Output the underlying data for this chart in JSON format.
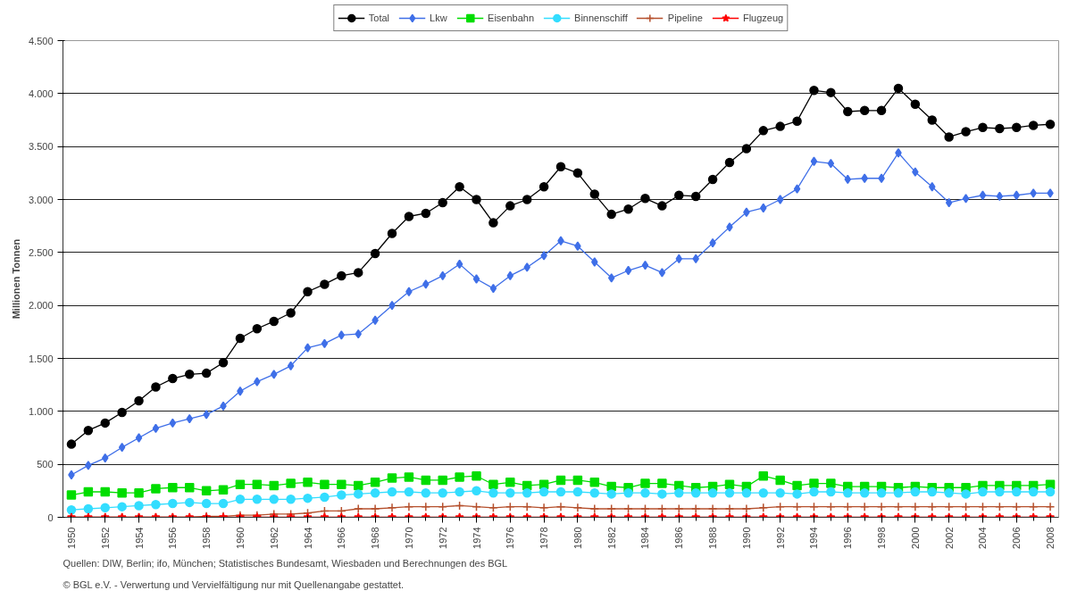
{
  "chart_data": {
    "type": "line",
    "ylabel": "Millionen Tonnen",
    "x": [
      1950,
      1951,
      1952,
      1953,
      1954,
      1955,
      1956,
      1957,
      1958,
      1959,
      1960,
      1961,
      1962,
      1963,
      1964,
      1965,
      1966,
      1967,
      1968,
      1969,
      1970,
      1971,
      1972,
      1973,
      1974,
      1975,
      1976,
      1977,
      1978,
      1979,
      1980,
      1981,
      1982,
      1983,
      1984,
      1985,
      1986,
      1987,
      1988,
      1989,
      1990,
      1991,
      1992,
      1993,
      1994,
      1995,
      1996,
      1997,
      1998,
      1999,
      2000,
      2001,
      2002,
      2003,
      2004,
      2005,
      2006,
      2007,
      2008
    ],
    "series": [
      {
        "name": "Total",
        "color": "#000000",
        "marker": "circle",
        "values": [
          690,
          820,
          890,
          990,
          1100,
          1230,
          1310,
          1350,
          1360,
          1460,
          1690,
          1780,
          1850,
          1930,
          2130,
          2200,
          2280,
          2310,
          2490,
          2680,
          2840,
          2870,
          2970,
          3120,
          3000,
          2780,
          2940,
          3000,
          3120,
          3310,
          3250,
          3050,
          2860,
          2910,
          3010,
          2940,
          3040,
          3030,
          3190,
          3350,
          3480,
          3650,
          3690,
          3740,
          4030,
          4010,
          3830,
          3840,
          3840,
          4050,
          3900,
          3750,
          3590,
          3640,
          3680,
          3670,
          3680,
          3700,
          3710
        ]
      },
      {
        "name": "Lkw",
        "color": "#3f6fe8",
        "marker": "diamond",
        "values": [
          400,
          490,
          560,
          660,
          750,
          840,
          890,
          930,
          970,
          1050,
          1190,
          1280,
          1350,
          1430,
          1600,
          1640,
          1720,
          1730,
          1860,
          2000,
          2130,
          2200,
          2280,
          2390,
          2250,
          2160,
          2280,
          2360,
          2470,
          2610,
          2560,
          2410,
          2260,
          2330,
          2380,
          2310,
          2440,
          2440,
          2590,
          2740,
          2880,
          2920,
          3000,
          3100,
          3360,
          3340,
          3190,
          3200,
          3200,
          3440,
          3260,
          3120,
          2970,
          3010,
          3040,
          3030,
          3040,
          3060,
          3060
        ]
      },
      {
        "name": "Eisenbahn",
        "color": "#00dd00",
        "marker": "square",
        "values": [
          210,
          240,
          240,
          230,
          230,
          270,
          280,
          280,
          250,
          260,
          310,
          310,
          300,
          320,
          330,
          310,
          310,
          300,
          330,
          370,
          380,
          350,
          350,
          380,
          390,
          310,
          330,
          300,
          310,
          350,
          350,
          330,
          290,
          280,
          320,
          320,
          300,
          280,
          290,
          310,
          290,
          390,
          350,
          300,
          320,
          320,
          290,
          290,
          290,
          280,
          290,
          280,
          280,
          280,
          300,
          300,
          300,
          300,
          310
        ]
      },
      {
        "name": "Binnenschiff",
        "color": "#33ddff",
        "marker": "circle",
        "values": [
          70,
          80,
          90,
          100,
          110,
          120,
          130,
          140,
          130,
          130,
          170,
          170,
          170,
          170,
          180,
          190,
          210,
          220,
          230,
          240,
          240,
          230,
          230,
          240,
          250,
          230,
          230,
          230,
          240,
          240,
          240,
          230,
          220,
          230,
          230,
          220,
          230,
          230,
          230,
          230,
          230,
          230,
          230,
          220,
          240,
          240,
          230,
          230,
          230,
          230,
          240,
          240,
          230,
          220,
          240,
          240,
          240,
          240,
          240
        ]
      },
      {
        "name": "Pipeline",
        "color": "#b5502d",
        "marker": "cross",
        "values": [
          0,
          0,
          0,
          0,
          0,
          0,
          0,
          0,
          10,
          10,
          20,
          20,
          30,
          30,
          40,
          60,
          60,
          80,
          80,
          90,
          100,
          100,
          100,
          110,
          100,
          90,
          100,
          100,
          90,
          100,
          90,
          80,
          80,
          80,
          80,
          80,
          80,
          80,
          80,
          80,
          80,
          90,
          100,
          100,
          100,
          100,
          100,
          100,
          100,
          100,
          100,
          100,
          100,
          100,
          100,
          100,
          100,
          100,
          100
        ]
      },
      {
        "name": "Flugzeug",
        "color": "#ff0000",
        "marker": "star",
        "values": [
          0,
          0,
          0,
          0,
          0,
          0,
          0,
          0,
          0,
          0,
          0,
          0,
          0,
          0,
          0,
          0,
          0,
          0,
          0,
          0,
          0,
          0,
          0,
          0,
          0,
          0,
          0,
          0,
          0,
          0,
          0,
          0,
          0,
          0,
          0,
          0,
          0,
          0,
          0,
          0,
          0,
          0,
          0,
          0,
          0,
          0,
          0,
          0,
          0,
          0,
          0,
          0,
          0,
          0,
          0,
          0,
          0,
          0,
          0
        ]
      }
    ],
    "xlim": [
      1949.5,
      2008.5
    ],
    "xticks": [
      1950,
      1952,
      1954,
      1956,
      1958,
      1960,
      1962,
      1964,
      1966,
      1968,
      1970,
      1972,
      1974,
      1976,
      1978,
      1980,
      1982,
      1984,
      1986,
      1988,
      1990,
      1992,
      1994,
      1996,
      1998,
      2000,
      2002,
      2004,
      2006,
      2008
    ],
    "ylim": [
      0,
      4500
    ],
    "yticks": [
      0,
      500,
      {
        "value": 1000,
        "label": "1.000"
      },
      {
        "value": 1500,
        "label": "1.500"
      },
      {
        "value": 2000,
        "label": "2.000"
      },
      {
        "value": 2500,
        "label": "2.500"
      },
      {
        "value": 3000,
        "label": "3.000"
      },
      {
        "value": 3500,
        "label": "3.500"
      },
      {
        "value": 4000,
        "label": "4.000"
      },
      {
        "value": 4500,
        "label": "4.500"
      }
    ],
    "grid": "y",
    "legend": "top",
    "line_style": "solid",
    "annotations": [
      "Quellen: DIW, Berlin; ifo, München; Statistisches Bundesamt, Wiesbaden und Berechnungen des BGL",
      "© BGL e.V. - Verwertung und Vervielfältigung nur mit Quellenangabe gestattet."
    ]
  }
}
